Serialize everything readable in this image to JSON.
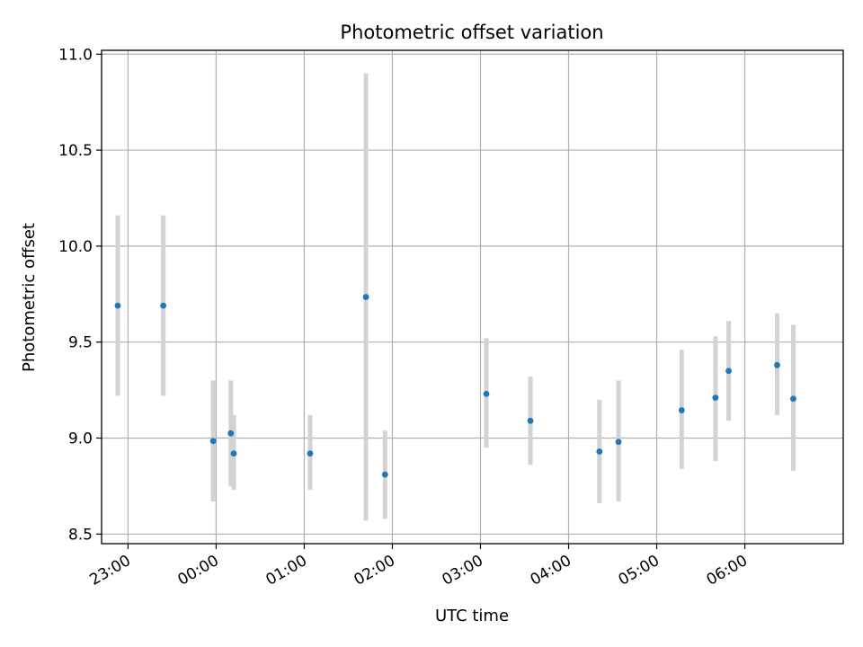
{
  "chart_data": {
    "type": "scatter",
    "title": "Photometric offset variation",
    "xlabel": "UTC time",
    "ylabel": "Photometric offset",
    "ylim": [
      8.45,
      11.02
    ],
    "xlim": [
      "22:42",
      "07:07"
    ],
    "grid": true,
    "x_ticks": [
      "23:00",
      "00:00",
      "01:00",
      "02:00",
      "03:00",
      "04:00",
      "05:00",
      "06:00"
    ],
    "y_ticks": [
      "8.5",
      "9.0",
      "9.5",
      "10.0",
      "10.5",
      "11.0"
    ],
    "marker_color": "#1f77b4",
    "errorbar_color": "#d3d3d3",
    "points": [
      {
        "t": "22:53",
        "y": 9.69,
        "ylo": 9.22,
        "yhi": 10.16
      },
      {
        "t": "23:24",
        "y": 9.69,
        "ylo": 9.22,
        "yhi": 10.16
      },
      {
        "t": "23:58",
        "y": 8.985,
        "ylo": 8.67,
        "yhi": 9.3
      },
      {
        "t": "00:10",
        "y": 9.025,
        "ylo": 8.75,
        "yhi": 9.3
      },
      {
        "t": "00:12",
        "y": 8.92,
        "ylo": 8.73,
        "yhi": 9.12
      },
      {
        "t": "01:04",
        "y": 8.92,
        "ylo": 8.73,
        "yhi": 9.12
      },
      {
        "t": "01:42",
        "y": 9.735,
        "ylo": 8.57,
        "yhi": 10.9
      },
      {
        "t": "01:55",
        "y": 8.81,
        "ylo": 8.58,
        "yhi": 9.04
      },
      {
        "t": "03:04",
        "y": 9.23,
        "ylo": 8.95,
        "yhi": 9.52
      },
      {
        "t": "03:34",
        "y": 9.09,
        "ylo": 8.86,
        "yhi": 9.32
      },
      {
        "t": "04:21",
        "y": 8.93,
        "ylo": 8.66,
        "yhi": 9.2
      },
      {
        "t": "04:34",
        "y": 8.98,
        "ylo": 8.67,
        "yhi": 9.3
      },
      {
        "t": "05:17",
        "y": 9.145,
        "ylo": 8.84,
        "yhi": 9.46
      },
      {
        "t": "05:40",
        "y": 9.21,
        "ylo": 8.88,
        "yhi": 9.53
      },
      {
        "t": "05:49",
        "y": 9.35,
        "ylo": 9.09,
        "yhi": 9.61
      },
      {
        "t": "06:22",
        "y": 9.38,
        "ylo": 9.12,
        "yhi": 9.65
      },
      {
        "t": "06:33",
        "y": 9.205,
        "ylo": 8.83,
        "yhi": 9.59
      }
    ]
  }
}
